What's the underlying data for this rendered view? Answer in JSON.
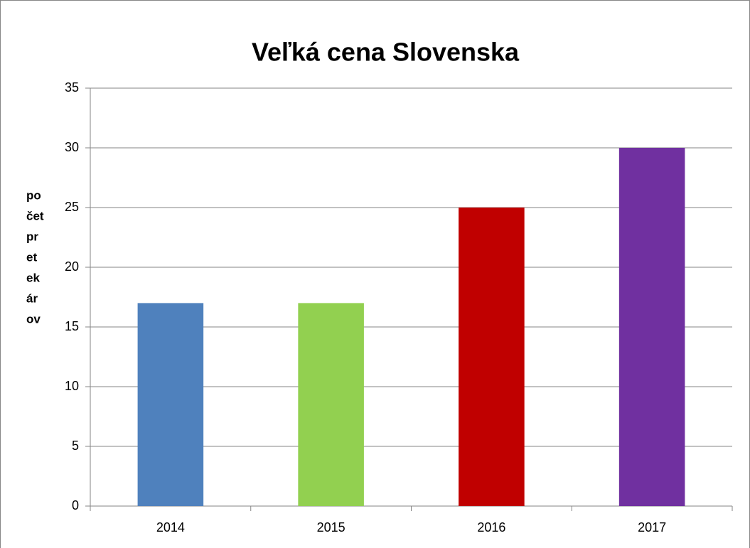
{
  "chart_data": {
    "type": "bar",
    "title": "Veľká cena Slovenska",
    "y_label_lines": [
      "po",
      "čet",
      "pr",
      "et",
      "ek",
      "ár",
      "ov"
    ],
    "categories": [
      "2014",
      "2015",
      "2016",
      "2017"
    ],
    "values": [
      17,
      17,
      25,
      30
    ],
    "colors": [
      "#4f81bd",
      "#92d050",
      "#c00000",
      "#7030a0"
    ],
    "ylim": [
      0,
      35
    ],
    "yticks": [
      0,
      5,
      10,
      15,
      20,
      25,
      30,
      35
    ],
    "grid": true
  }
}
